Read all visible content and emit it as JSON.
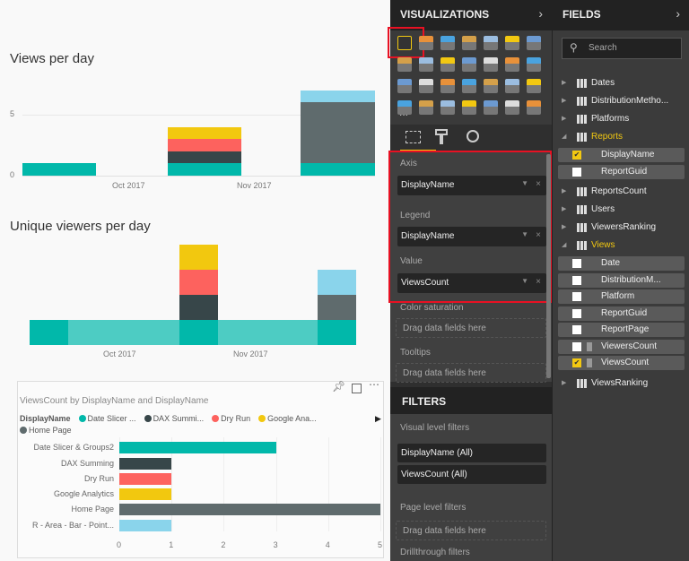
{
  "canvas": {
    "chart1_title": "Views per day",
    "chart2_title": "Unique viewers per day",
    "chart3_title": "ViewsCount by DisplayName and DisplayName",
    "legend_label": "DisplayName",
    "legend_items": [
      "Date Slicer ...",
      "DAX Summi...",
      "Dry Run",
      "Google Ana...",
      "Home Page"
    ],
    "legend_more_icon": "triangle-right-icon"
  },
  "colors": {
    "teal": "#01b8aa",
    "dark": "#374649",
    "red": "#fd625e",
    "yellow": "#f2c80f",
    "gray": "#5f6b6d",
    "lightblue": "#8ad4eb",
    "lightteal": "#4dccc3",
    "accent": "#f2c811",
    "highlight": "#e81123"
  },
  "chart_data": [
    {
      "type": "bar",
      "stacked": true,
      "title": "Views per day",
      "x_ticks": [
        "Oct 2017",
        "Nov 2017"
      ],
      "y_ticks": [
        "0",
        "5"
      ],
      "ylim": [
        0,
        7
      ],
      "grid": true,
      "bars": [
        [
          {
            "series": "Date Slicer & Groups2",
            "value": 1
          }
        ],
        [
          {
            "series": "Date Slicer & Groups2",
            "value": 1
          },
          {
            "series": "DAX Summing",
            "value": 1
          },
          {
            "series": "Dry Run",
            "value": 1
          },
          {
            "series": "Google Analytics",
            "value": 1
          }
        ],
        [
          {
            "series": "Date Slicer & Groups2",
            "value": 1
          },
          {
            "series": "Home Page",
            "value": 5
          },
          {
            "series": "R - Area - Bar - Point...",
            "value": 1
          }
        ]
      ]
    },
    {
      "type": "bar",
      "stacked": true,
      "title": "Unique viewers per day",
      "x_ticks": [
        "Oct 2017",
        "Nov 2017"
      ],
      "bars": [
        [
          {
            "series": "Date Slicer & Groups2",
            "value": 1
          }
        ],
        [
          {
            "series": "Date Slicer & Groups2",
            "value": 1
          }
        ],
        [
          {
            "series": "Date Slicer & Groups2",
            "value": 1
          },
          {
            "series": "DAX Summing",
            "value": 1
          },
          {
            "series": "Dry Run",
            "value": 1
          },
          {
            "series": "Google Analytics",
            "value": 1
          }
        ],
        [
          {
            "series": "Date Slicer & Groups2",
            "value": 1
          }
        ],
        [
          {
            "series": "Date Slicer & Groups2",
            "value": 1
          },
          {
            "series": "Home Page",
            "value": 1
          },
          {
            "series": "R - Area - Bar - Point...",
            "value": 1
          }
        ]
      ]
    },
    {
      "type": "bar",
      "orientation": "horizontal",
      "title": "ViewsCount by DisplayName and DisplayName",
      "legend": "top",
      "categories": [
        "Date Slicer & Groups2",
        "DAX Summing",
        "Dry Run",
        "Google Analytics",
        "Home Page",
        "R - Area - Bar - Point..."
      ],
      "values": [
        3,
        1,
        1,
        1,
        5,
        1
      ],
      "x_ticks": [
        "0",
        "1",
        "2",
        "3",
        "4",
        "5"
      ],
      "xlim": [
        0,
        5
      ],
      "grid": true
    }
  ],
  "visualizations": {
    "title": "VISUALIZATIONS",
    "more": "...",
    "wells": {
      "axis_label": "Axis",
      "axis_value": "DisplayName",
      "legend_label": "Legend",
      "legend_value": "DisplayName",
      "value_label": "Value",
      "value_value": "ViewsCount",
      "color_label": "Color saturation",
      "tooltips_label": "Tooltips",
      "drag_placeholder": "Drag data fields here"
    }
  },
  "filters": {
    "title": "FILTERS",
    "visual_level": "Visual level filters",
    "items": [
      "DisplayName  (All)",
      "ViewsCount  (All)"
    ],
    "page_level": "Page level filters",
    "drag_placeholder": "Drag data fields here",
    "drillthrough": "Drillthrough filters"
  },
  "fields": {
    "title": "FIELDS",
    "search_placeholder": "Search",
    "tables_a": [
      "Dates",
      "DistributionMetho...",
      "Platforms"
    ],
    "reports": {
      "name": "Reports",
      "fields": [
        {
          "name": "DisplayName",
          "checked": true
        },
        {
          "name": "ReportGuid",
          "checked": false
        }
      ]
    },
    "tables_b": [
      "ReportsCount",
      "Users",
      "ViewersRanking"
    ],
    "views": {
      "name": "Views",
      "fields": [
        {
          "name": "Date",
          "checked": false
        },
        {
          "name": "DistributionM...",
          "checked": false
        },
        {
          "name": "Platform",
          "checked": false
        },
        {
          "name": "ReportGuid",
          "checked": false
        },
        {
          "name": "ReportPage",
          "checked": false
        },
        {
          "name": "ViewersCount",
          "checked": false,
          "calc": true
        },
        {
          "name": "ViewsCount",
          "checked": true,
          "calc": true
        }
      ]
    },
    "tables_c": [
      "ViewsRanking"
    ]
  }
}
